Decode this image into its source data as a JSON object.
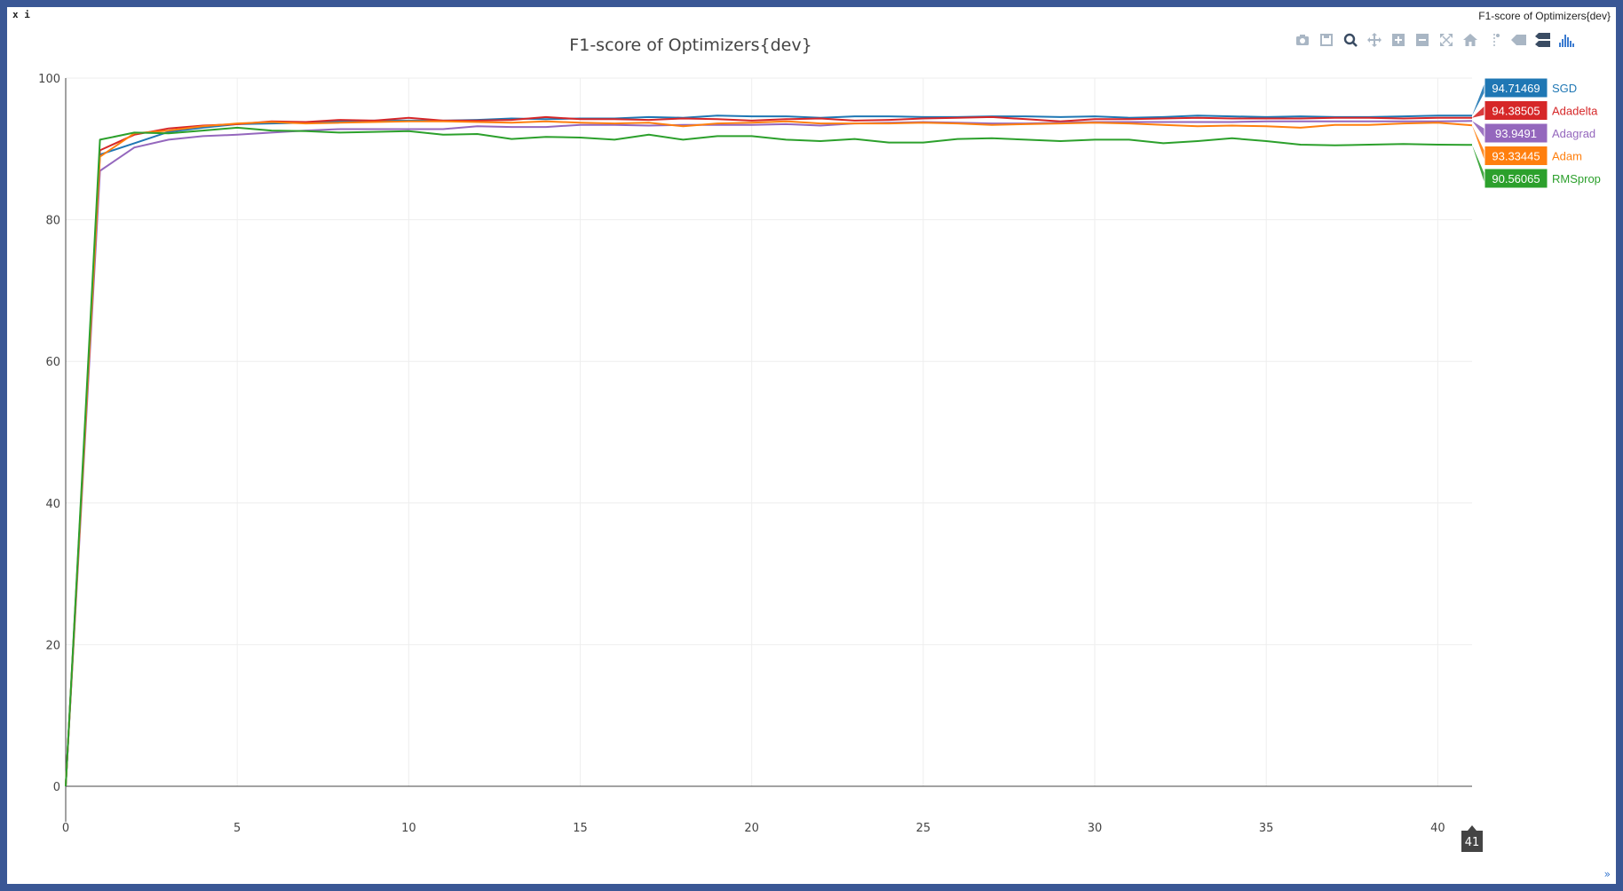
{
  "window": {
    "corner_label": "x i",
    "title": "F1-score of Optimizers{dev}"
  },
  "modebar": {
    "icons": [
      "camera-icon",
      "save-icon",
      "zoom-icon",
      "pan-icon",
      "zoom-in-icon",
      "zoom-out-icon",
      "autoscale-icon",
      "home-icon",
      "spike-lines-icon",
      "hover-closest-icon",
      "hover-compare-icon",
      "plotly-logo-icon"
    ]
  },
  "hover_x_label": "41",
  "colors": {
    "SGD": "#1f77b4",
    "Adadelta": "#d62728",
    "Adagrad": "#9467bd",
    "Adam": "#ff7f0e",
    "RMSprop": "#2ca02c"
  },
  "chart_data": {
    "type": "line",
    "title": "F1-score of Optimizers{dev}",
    "xlabel": "",
    "ylabel": "",
    "xlim": [
      0,
      41
    ],
    "ylim": [
      0,
      100
    ],
    "x_ticks": [
      0,
      5,
      10,
      15,
      20,
      25,
      30,
      35,
      40
    ],
    "y_ticks": [
      0,
      20,
      40,
      60,
      80,
      100
    ],
    "grid": true,
    "legend": "hover labels at right edge",
    "x": [
      0,
      1,
      2,
      3,
      4,
      5,
      6,
      7,
      8,
      9,
      10,
      11,
      12,
      13,
      14,
      15,
      16,
      17,
      18,
      19,
      20,
      21,
      22,
      23,
      24,
      25,
      26,
      27,
      28,
      29,
      30,
      31,
      32,
      33,
      34,
      35,
      36,
      37,
      38,
      39,
      40,
      41
    ],
    "series": [
      {
        "name": "SGD",
        "hover_value": "94.71469",
        "values": [
          0,
          89.2,
          90.8,
          92.4,
          93.0,
          93.5,
          93.6,
          93.7,
          93.9,
          94.0,
          94.0,
          94.0,
          94.1,
          94.3,
          94.2,
          94.3,
          94.3,
          94.5,
          94.4,
          94.7,
          94.6,
          94.6,
          94.4,
          94.6,
          94.6,
          94.5,
          94.5,
          94.6,
          94.6,
          94.5,
          94.6,
          94.4,
          94.5,
          94.7,
          94.6,
          94.5,
          94.6,
          94.5,
          94.5,
          94.6,
          94.7,
          94.71
        ]
      },
      {
        "name": "Adadelta",
        "hover_value": "94.38505",
        "values": [
          0,
          89.8,
          92.0,
          92.9,
          93.3,
          93.5,
          93.9,
          93.8,
          94.1,
          94.0,
          94.4,
          94.0,
          94.0,
          94.1,
          94.5,
          94.2,
          94.2,
          94.1,
          94.3,
          94.2,
          94.0,
          94.2,
          94.3,
          94.0,
          94.1,
          94.3,
          94.4,
          94.5,
          94.2,
          93.9,
          94.2,
          94.2,
          94.3,
          94.4,
          94.3,
          94.3,
          94.3,
          94.4,
          94.4,
          94.3,
          94.4,
          94.39
        ]
      },
      {
        "name": "Adagrad",
        "hover_value": "93.9491",
        "values": [
          0,
          86.9,
          90.2,
          91.3,
          91.8,
          92.0,
          92.3,
          92.6,
          92.8,
          92.8,
          92.8,
          92.8,
          93.2,
          93.1,
          93.1,
          93.4,
          93.4,
          93.3,
          93.4,
          93.4,
          93.4,
          93.5,
          93.3,
          93.6,
          93.7,
          93.8,
          93.7,
          93.6,
          93.6,
          93.7,
          93.8,
          93.8,
          93.8,
          93.8,
          93.8,
          93.9,
          93.9,
          93.9,
          93.9,
          93.9,
          93.9,
          93.95
        ]
      },
      {
        "name": "Adam",
        "hover_value": "93.33445",
        "values": [
          0,
          88.9,
          92.2,
          92.6,
          93.2,
          93.6,
          93.8,
          93.6,
          93.7,
          93.8,
          93.9,
          93.9,
          93.8,
          93.7,
          93.9,
          93.7,
          93.6,
          93.7,
          93.2,
          93.6,
          93.7,
          93.9,
          93.6,
          93.6,
          93.6,
          93.7,
          93.6,
          93.4,
          93.5,
          93.6,
          93.7,
          93.6,
          93.4,
          93.2,
          93.3,
          93.2,
          93.0,
          93.4,
          93.4,
          93.6,
          93.7,
          93.33
        ]
      },
      {
        "name": "RMSprop",
        "hover_value": "90.56065",
        "values": [
          0,
          91.3,
          92.3,
          92.2,
          92.6,
          93.0,
          92.6,
          92.5,
          92.3,
          92.4,
          92.5,
          92.0,
          92.1,
          91.4,
          91.7,
          91.6,
          91.3,
          92.0,
          91.3,
          91.8,
          91.8,
          91.3,
          91.1,
          91.4,
          90.9,
          90.9,
          91.4,
          91.5,
          91.3,
          91.1,
          91.3,
          91.3,
          90.8,
          91.1,
          91.5,
          91.1,
          90.6,
          90.5,
          90.6,
          90.7,
          90.6,
          90.56
        ]
      }
    ]
  }
}
